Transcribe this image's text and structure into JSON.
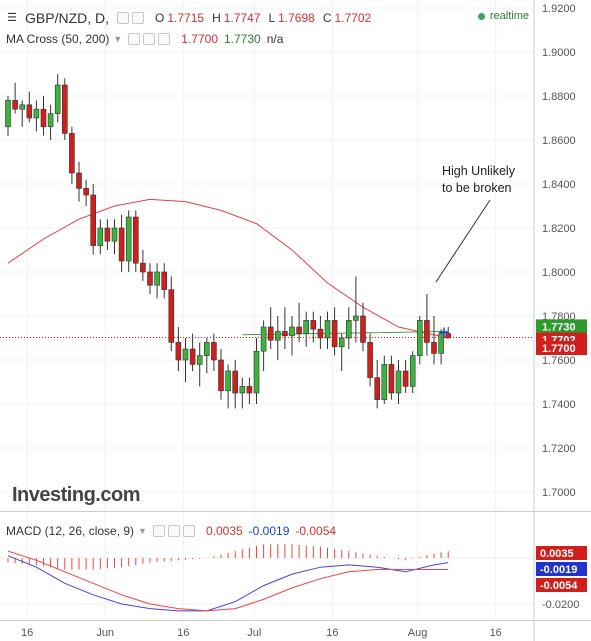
{
  "header": {
    "symbol": "GBP/NZD, D,",
    "open_label": "O",
    "open": "1.7715",
    "high_label": "H",
    "high": "1.7747",
    "low_label": "L",
    "low": "1.7698",
    "close_label": "C",
    "close": "1.7702",
    "realtime": "realtime"
  },
  "ma_legend": {
    "name": "MA Cross (50, 200)",
    "v1": "1.7700",
    "v2": "1.7730",
    "v3": "n/a"
  },
  "macd_legend": {
    "name": "MACD (12, 26, close, 9)",
    "v1": "0.0035",
    "v2": "-0.0019",
    "v3": "-0.0054"
  },
  "annotation": [
    "High Unlikely",
    "to be broken"
  ],
  "logo": "Investing.com",
  "colors": {
    "up": "#3db33d",
    "down": "#d0201e",
    "ma50": "#e04040",
    "ma200": "#4a9a4a",
    "macd": "#4444dd",
    "signal": "#ee4444"
  },
  "price_badges": [
    {
      "label": "1.7730",
      "value": 1.773,
      "color": "#2e9a2e"
    },
    {
      "label": "1.7702",
      "value": 1.7702,
      "color": "#d0201e"
    },
    {
      "label": "1.7700",
      "value": 1.77,
      "color": "#d0201e"
    }
  ],
  "macd_badges": [
    {
      "label": "0.0035",
      "value": 0.0035,
      "color": "#d0201e"
    },
    {
      "label": "-0.0019",
      "value": -0.0019,
      "color": "#2233cc"
    },
    {
      "label": "-0.0054",
      "value": -0.0054,
      "color": "#d0201e"
    }
  ],
  "x_ticks": [
    {
      "label": "16",
      "index": 1
    },
    {
      "label": "Jun",
      "index": 12
    },
    {
      "label": "16",
      "index": 23
    },
    {
      "label": "Jul",
      "index": 33
    },
    {
      "label": "16",
      "index": 44
    },
    {
      "label": "Aug",
      "index": 56
    },
    {
      "label": "16",
      "index": 67
    }
  ],
  "chart_data": [
    {
      "type": "candlestick",
      "title": "GBP/NZD, D",
      "ylim": [
        1.68,
        1.925
      ],
      "y_ticks": [
        1.7,
        1.72,
        1.74,
        1.76,
        1.78,
        1.8,
        1.82,
        1.84,
        1.86,
        1.88,
        1.9,
        1.92
      ],
      "y_tick_labels": [
        "1.7000",
        "1.7200",
        "1.7400",
        "1.7600",
        "1.7800",
        "1.8000",
        "1.8200",
        "1.8400",
        "1.8600",
        "1.8800",
        "1.9000",
        "1.9200"
      ],
      "candles": [
        [
          1.866,
          1.88,
          1.862,
          1.878
        ],
        [
          1.878,
          1.886,
          1.872,
          1.874
        ],
        [
          1.874,
          1.878,
          1.866,
          1.876
        ],
        [
          1.876,
          1.882,
          1.868,
          1.87
        ],
        [
          1.87,
          1.878,
          1.864,
          1.874
        ],
        [
          1.874,
          1.88,
          1.862,
          1.866
        ],
        [
          1.866,
          1.876,
          1.86,
          1.872
        ],
        [
          1.872,
          1.89,
          1.868,
          1.885
        ],
        [
          1.885,
          1.888,
          1.86,
          1.863
        ],
        [
          1.863,
          1.866,
          1.84,
          1.845
        ],
        [
          1.845,
          1.85,
          1.832,
          1.838
        ],
        [
          1.838,
          1.842,
          1.83,
          1.835
        ],
        [
          1.835,
          1.84,
          1.808,
          1.812
        ],
        [
          1.812,
          1.824,
          1.808,
          1.82
        ],
        [
          1.82,
          1.824,
          1.81,
          1.814
        ],
        [
          1.814,
          1.824,
          1.808,
          1.82
        ],
        [
          1.82,
          1.826,
          1.8,
          1.805
        ],
        [
          1.805,
          1.828,
          1.8,
          1.825
        ],
        [
          1.825,
          1.828,
          1.8,
          1.804
        ],
        [
          1.804,
          1.81,
          1.796,
          1.8
        ],
        [
          1.8,
          1.804,
          1.79,
          1.794
        ],
        [
          1.794,
          1.804,
          1.788,
          1.8
        ],
        [
          1.8,
          1.804,
          1.788,
          1.792
        ],
        [
          1.792,
          1.798,
          1.764,
          1.768
        ],
        [
          1.768,
          1.775,
          1.755,
          1.76
        ],
        [
          1.76,
          1.77,
          1.75,
          1.765
        ],
        [
          1.765,
          1.772,
          1.755,
          1.758
        ],
        [
          1.758,
          1.768,
          1.748,
          1.762
        ],
        [
          1.762,
          1.77,
          1.754,
          1.768
        ],
        [
          1.768,
          1.772,
          1.755,
          1.76
        ],
        [
          1.76,
          1.765,
          1.742,
          1.746
        ],
        [
          1.746,
          1.758,
          1.738,
          1.755
        ],
        [
          1.755,
          1.76,
          1.738,
          1.745
        ],
        [
          1.745,
          1.752,
          1.738,
          1.748
        ],
        [
          1.748,
          1.752,
          1.74,
          1.745
        ],
        [
          1.745,
          1.77,
          1.74,
          1.764
        ],
        [
          1.764,
          1.778,
          1.755,
          1.775
        ],
        [
          1.775,
          1.784,
          1.765,
          1.769
        ],
        [
          1.769,
          1.78,
          1.76,
          1.773
        ],
        [
          1.773,
          1.784,
          1.765,
          1.771
        ],
        [
          1.771,
          1.78,
          1.762,
          1.775
        ],
        [
          1.775,
          1.786,
          1.768,
          1.772
        ],
        [
          1.772,
          1.782,
          1.766,
          1.778
        ],
        [
          1.778,
          1.782,
          1.768,
          1.774
        ],
        [
          1.774,
          1.78,
          1.765,
          1.77
        ],
        [
          1.77,
          1.782,
          1.765,
          1.778
        ],
        [
          1.778,
          1.784,
          1.762,
          1.766
        ],
        [
          1.766,
          1.772,
          1.755,
          1.77
        ],
        [
          1.77,
          1.784,
          1.765,
          1.778
        ],
        [
          1.778,
          1.798,
          1.768,
          1.78
        ],
        [
          1.78,
          1.786,
          1.764,
          1.768
        ],
        [
          1.768,
          1.772,
          1.748,
          1.752
        ],
        [
          1.752,
          1.76,
          1.738,
          1.742
        ],
        [
          1.742,
          1.762,
          1.74,
          1.758
        ],
        [
          1.758,
          1.762,
          1.742,
          1.745
        ],
        [
          1.745,
          1.76,
          1.74,
          1.755
        ],
        [
          1.755,
          1.76,
          1.745,
          1.748
        ],
        [
          1.748,
          1.764,
          1.745,
          1.762
        ],
        [
          1.762,
          1.78,
          1.758,
          1.778
        ],
        [
          1.778,
          1.79,
          1.762,
          1.768
        ],
        [
          1.768,
          1.78,
          1.758,
          1.763
        ],
        [
          1.763,
          1.774,
          1.758,
          1.772
        ],
        [
          1.772,
          1.775,
          1.77,
          1.77
        ]
      ],
      "series": [
        {
          "name": "MA 50",
          "color": "#e04040",
          "x": [
            0,
            5,
            10,
            15,
            20,
            25,
            30,
            35,
            40,
            45,
            50,
            55,
            62
          ],
          "values": [
            1.804,
            1.815,
            1.824,
            1.83,
            1.833,
            1.832,
            1.828,
            1.822,
            1.81,
            1.795,
            1.784,
            1.775,
            1.77
          ]
        },
        {
          "name": "MA 200",
          "color": "#4a9a4a",
          "x": [
            33,
            40,
            50,
            62
          ],
          "values": [
            1.7715,
            1.7718,
            1.7723,
            1.773
          ]
        }
      ],
      "annotation": {
        "text": [
          "High Unlikely",
          "to be broken"
        ],
        "points_to_index": 60
      },
      "current_price": 1.7702
    },
    {
      "type": "line",
      "title": "MACD (12, 26, close, 9)",
      "ylim": [
        -0.026,
        0.006
      ],
      "y_ticks": [
        -0.02
      ],
      "y_tick_labels": [
        "-0.0200"
      ],
      "series": [
        {
          "name": "MACD",
          "color": "#4444dd",
          "x": [
            0,
            4,
            8,
            12,
            16,
            20,
            24,
            28,
            32,
            36,
            40,
            44,
            48,
            52,
            56,
            60,
            62
          ],
          "values": [
            0.001,
            -0.004,
            -0.011,
            -0.016,
            -0.02,
            -0.022,
            -0.023,
            -0.023,
            -0.019,
            -0.012,
            -0.007,
            -0.004,
            -0.003,
            -0.004,
            -0.006,
            -0.003,
            -0.002
          ]
        },
        {
          "name": "Signal",
          "color": "#ee4444",
          "x": [
            0,
            4,
            8,
            12,
            16,
            20,
            24,
            28,
            32,
            36,
            40,
            44,
            48,
            52,
            56,
            60,
            62
          ],
          "values": [
            0.003,
            -0.001,
            -0.006,
            -0.011,
            -0.016,
            -0.02,
            -0.022,
            -0.023,
            -0.022,
            -0.018,
            -0.013,
            -0.009,
            -0.006,
            -0.005,
            -0.005,
            -0.005,
            -0.005
          ]
        }
      ],
      "histogram": {
        "name": "Histogram",
        "color": "#ee4444",
        "x": [
          0,
          4,
          8,
          12,
          16,
          20,
          24,
          28,
          32,
          36,
          40,
          44,
          48,
          52,
          56,
          60,
          62
        ],
        "values": [
          -0.002,
          -0.003,
          -0.005,
          -0.005,
          -0.004,
          -0.002,
          -0.001,
          0.0,
          0.003,
          0.006,
          0.006,
          0.005,
          0.003,
          0.001,
          -0.001,
          0.002,
          0.003
        ]
      }
    }
  ]
}
